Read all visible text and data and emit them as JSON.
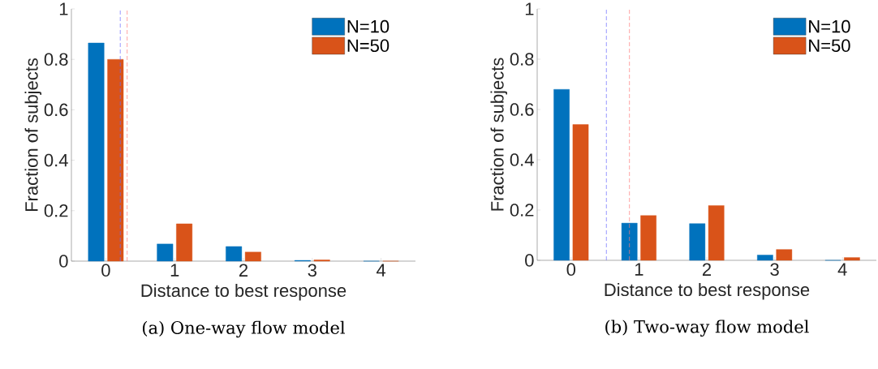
{
  "chart_data": [
    {
      "type": "bar",
      "xlabel": "Distance to best response",
      "ylabel": "Fraction of subjects",
      "x": [
        0,
        1,
        2,
        3,
        4
      ],
      "xlim": [
        -0.5,
        4.5
      ],
      "xticks": [
        0,
        1,
        2,
        3,
        4
      ],
      "ylim": [
        0,
        1
      ],
      "yticks": [
        0,
        0.2,
        0.4,
        0.6,
        0.8,
        1
      ],
      "legend": "top right",
      "grid": false,
      "series": [
        {
          "name": "N=10",
          "color": "#0072bd",
          "values": [
            0.865,
            0.068,
            0.058,
            0.003,
            0
          ]
        },
        {
          "name": "N=50",
          "color": "#d95319",
          "values": [
            0.8,
            0.148,
            0.036,
            0.005,
            0
          ]
        }
      ],
      "ref_lines": [
        {
          "axis": "x",
          "value": 0.21,
          "color": "#6a6aff",
          "line_style": "dashed"
        },
        {
          "axis": "x",
          "value": 0.31,
          "color": "#ff7a7a",
          "line_style": "dashed"
        }
      ],
      "annotations": [
        "(a) One-way flow model"
      ]
    },
    {
      "type": "bar",
      "xlabel": "Distance to best response",
      "ylabel": "Fraction of subjects",
      "x": [
        0,
        1,
        2,
        3,
        4
      ],
      "xlim": [
        -0.5,
        4.5
      ],
      "xticks": [
        0,
        1,
        2,
        3,
        4
      ],
      "ylim": [
        0,
        1
      ],
      "yticks": [
        0,
        0.2,
        0.4,
        0.6,
        0.8,
        1
      ],
      "legend": "top right",
      "grid": false,
      "series": [
        {
          "name": "N=10",
          "color": "#0072bd",
          "values": [
            0.68,
            0.148,
            0.146,
            0.021,
            0
          ]
        },
        {
          "name": "N=50",
          "color": "#d95319",
          "values": [
            0.54,
            0.178,
            0.218,
            0.043,
            0.011
          ]
        }
      ],
      "ref_lines": [
        {
          "axis": "x",
          "value": 0.52,
          "color": "#6a6aff",
          "line_style": "dashed"
        },
        {
          "axis": "x",
          "value": 0.86,
          "color": "#ff7a7a",
          "line_style": "dashed"
        }
      ],
      "annotations": [
        "(b) Two-way flow model"
      ]
    }
  ]
}
